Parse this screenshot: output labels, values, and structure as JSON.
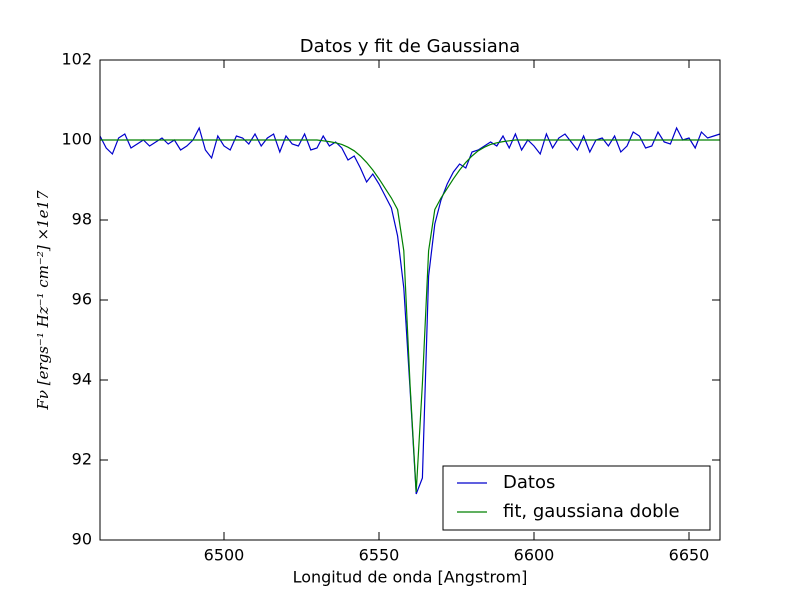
{
  "chart_data": {
    "type": "line",
    "title": "Datos y fit de Gaussiana",
    "xlabel": "Longitud de onda [Angstrom]",
    "ylabel": "Fν [ergs⁻¹ Hz⁻¹ cm⁻²] ×1e17",
    "x": [
      6460,
      6462,
      6464,
      6466,
      6468,
      6470,
      6472,
      6474,
      6476,
      6478,
      6480,
      6482,
      6484,
      6486,
      6488,
      6490,
      6492,
      6494,
      6496,
      6498,
      6500,
      6502,
      6504,
      6506,
      6508,
      6510,
      6512,
      6514,
      6516,
      6518,
      6520,
      6522,
      6524,
      6526,
      6528,
      6530,
      6532,
      6534,
      6536,
      6538,
      6540,
      6542,
      6544,
      6546,
      6548,
      6550,
      6552,
      6554,
      6556,
      6558,
      6560,
      6562,
      6564,
      6566,
      6568,
      6570,
      6572,
      6574,
      6576,
      6578,
      6580,
      6582,
      6584,
      6586,
      6588,
      6590,
      6592,
      6594,
      6596,
      6598,
      6600,
      6602,
      6604,
      6606,
      6608,
      6610,
      6612,
      6614,
      6616,
      6618,
      6620,
      6622,
      6624,
      6626,
      6628,
      6630,
      6632,
      6634,
      6636,
      6638,
      6640,
      6642,
      6644,
      6646,
      6648,
      6650,
      6652,
      6654,
      6656,
      6658,
      6660
    ],
    "series": [
      {
        "name": "Datos",
        "color": "#0000cc",
        "values": [
          100.1,
          99.8,
          99.65,
          100.05,
          100.15,
          99.8,
          99.9,
          100.0,
          99.85,
          99.95,
          100.05,
          99.9,
          100.0,
          99.75,
          99.85,
          100.0,
          100.3,
          99.75,
          99.55,
          100.1,
          99.85,
          99.75,
          100.1,
          100.05,
          99.9,
          100.15,
          99.85,
          100.05,
          100.15,
          99.7,
          100.1,
          99.9,
          99.85,
          100.15,
          99.75,
          99.8,
          100.1,
          99.85,
          99.95,
          99.8,
          99.5,
          99.6,
          99.3,
          98.95,
          99.15,
          98.9,
          98.6,
          98.3,
          97.6,
          96.3,
          93.8,
          91.15,
          91.55,
          96.6,
          97.9,
          98.5,
          98.9,
          99.2,
          99.4,
          99.3,
          99.7,
          99.75,
          99.85,
          99.95,
          99.85,
          100.1,
          99.8,
          100.15,
          99.75,
          100.0,
          99.85,
          99.65,
          100.15,
          99.8,
          100.05,
          100.15,
          99.95,
          99.75,
          100.1,
          99.7,
          100.0,
          100.05,
          99.85,
          100.1,
          99.7,
          99.85,
          100.2,
          100.1,
          99.8,
          99.85,
          100.2,
          99.95,
          99.9,
          100.3,
          100.0,
          100.05,
          99.8,
          100.2,
          100.05,
          100.1,
          100.15
        ]
      },
      {
        "name": "fit, gaussiana doble",
        "color": "#008000",
        "values": [
          100,
          100,
          100,
          100,
          100,
          100,
          100,
          100,
          100,
          100,
          100,
          100,
          100,
          100,
          100,
          100,
          100,
          100,
          100,
          100,
          100,
          100,
          100,
          100,
          100,
          100,
          100,
          100,
          100,
          100,
          100,
          100,
          100,
          100,
          100,
          100,
          99.98,
          99.96,
          99.93,
          99.89,
          99.82,
          99.73,
          99.6,
          99.44,
          99.25,
          99.03,
          98.79,
          98.55,
          98.26,
          97.23,
          93.91,
          91.2,
          93.91,
          97.23,
          98.26,
          98.55,
          98.79,
          99.03,
          99.25,
          99.44,
          99.6,
          99.73,
          99.82,
          99.89,
          99.93,
          99.96,
          99.98,
          100,
          100,
          100,
          100,
          100,
          100,
          100,
          100,
          100,
          100,
          100,
          100,
          100,
          100,
          100,
          100,
          100,
          100,
          100,
          100,
          100,
          100,
          100,
          100,
          100,
          100,
          100,
          100,
          100,
          100,
          100,
          100,
          100,
          100
        ]
      }
    ],
    "xlim": [
      6460,
      6660
    ],
    "ylim": [
      90,
      102
    ],
    "xticks": [
      6500,
      6550,
      6600,
      6650
    ],
    "yticks": [
      90,
      92,
      94,
      96,
      98,
      100,
      102
    ],
    "legend": "lower right"
  }
}
